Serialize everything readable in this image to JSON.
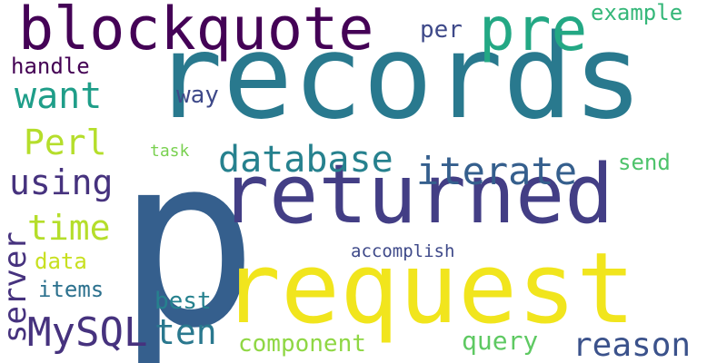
{
  "words": [
    {
      "text": "p",
      "color": "#355f8d",
      "orientation": "horizontal"
    },
    {
      "text": "records",
      "color": "#29798e",
      "orientation": "horizontal"
    },
    {
      "text": "returned",
      "color": "#433e85",
      "orientation": "horizontal"
    },
    {
      "text": "request",
      "color": "#f1e51d",
      "orientation": "horizontal"
    },
    {
      "text": "blockquote",
      "color": "#440256",
      "orientation": "horizontal"
    },
    {
      "text": "pre",
      "color": "#23a884",
      "orientation": "horizontal"
    },
    {
      "text": "database",
      "color": "#26818e",
      "orientation": "horizontal"
    },
    {
      "text": "iterate",
      "color": "#355f8d",
      "orientation": "horizontal"
    },
    {
      "text": "MySQL",
      "color": "#46327e",
      "orientation": "horizontal"
    },
    {
      "text": "reason",
      "color": "#3b528b",
      "orientation": "horizontal"
    },
    {
      "text": "want",
      "color": "#1f9e89",
      "orientation": "horizontal"
    },
    {
      "text": "Perl",
      "color": "#b5de2b",
      "orientation": "horizontal"
    },
    {
      "text": "using",
      "color": "#46327e",
      "orientation": "horizontal"
    },
    {
      "text": "time",
      "color": "#b5de2b",
      "orientation": "horizontal"
    },
    {
      "text": "ten",
      "color": "#2a788e",
      "orientation": "horizontal"
    },
    {
      "text": "server",
      "color": "#46327e",
      "orientation": "vertical"
    },
    {
      "text": "handle",
      "color": "#440154",
      "orientation": "horizontal"
    },
    {
      "text": "component",
      "color": "#8fd744",
      "orientation": "horizontal"
    },
    {
      "text": "query",
      "color": "#5ec962",
      "orientation": "horizontal"
    },
    {
      "text": "example",
      "color": "#35b779",
      "orientation": "horizontal"
    },
    {
      "text": "way",
      "color": "#3e4989",
      "orientation": "horizontal"
    },
    {
      "text": "per",
      "color": "#3e4989",
      "orientation": "horizontal"
    },
    {
      "text": "best",
      "color": "#26818e",
      "orientation": "horizontal"
    },
    {
      "text": "data",
      "color": "#c8e020",
      "orientation": "horizontal"
    },
    {
      "text": "items",
      "color": "#2c718e",
      "orientation": "horizontal"
    },
    {
      "text": "send",
      "color": "#4ec36b",
      "orientation": "horizontal"
    },
    {
      "text": "task",
      "color": "#7ad151",
      "orientation": "horizontal"
    },
    {
      "text": "accomplish",
      "color": "#3e4989",
      "orientation": "horizontal"
    }
  ]
}
